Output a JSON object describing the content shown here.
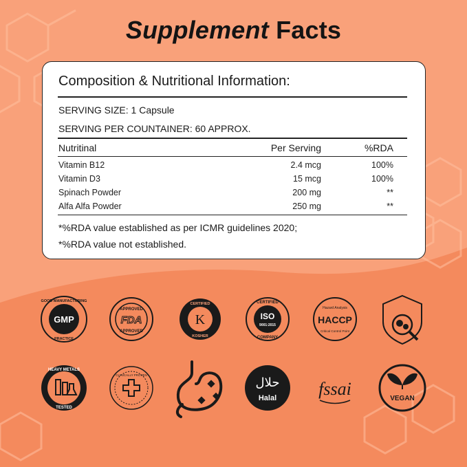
{
  "title": {
    "bold_italic": "Supplement",
    "bold": "Facts"
  },
  "card": {
    "heading": "Composition & Nutritional Information:",
    "serving_size": "SERVING SIZE: 1 Capsule",
    "serving_per_container": "SERVING PER COUNTAINER: 60 APPROX.",
    "columns": [
      "Nutritinal",
      "Per Serving",
      "%RDA"
    ],
    "rows": [
      {
        "name": "Vitamin B12",
        "per_serving": "2.4 mcg",
        "rda": "100%"
      },
      {
        "name": "Vitamin D3",
        "per_serving": "15 mcg",
        "rda": "100%"
      },
      {
        "name": "Spinach Powder",
        "per_serving": "200 mg",
        "rda": "**"
      },
      {
        "name": "Alfa Alfa Powder",
        "per_serving": "250 mg",
        "rda": "**"
      }
    ],
    "footnotes": [
      "*%RDA value established as per ICMR guidelines 2020;",
      "*%RDA value not established."
    ]
  },
  "badges": {
    "gmp": {
      "center": "GMP",
      "top": "GOOD MANUFACTURING",
      "bottom": "PRACTICE"
    },
    "fda": {
      "center": "FDA",
      "top": "APPROVED",
      "bottom": "APPROVED"
    },
    "kosher": {
      "center": "K",
      "top": "CERTIFIED",
      "bottom": "KOSHER"
    },
    "iso": {
      "center": "ISO",
      "sub": "9001:2015",
      "top": "CERTIFIED",
      "bottom": "COMPANY"
    },
    "haccp": {
      "center": "HACCP",
      "top": "Hazard Analysis",
      "bottom": "Critical Control Point"
    },
    "lab": {
      "icon": "microscope-capsule-icon"
    },
    "heavy_metals": {
      "top": "HEAVY METALS",
      "bottom": "TESTED"
    },
    "clinical": {
      "top": "CLINICALLY PROVEN"
    },
    "gut": {
      "icon": "stomach-icon"
    },
    "halal": {
      "arabic": "حلال",
      "label": "Halal"
    },
    "fssai": {
      "label": "fssai"
    },
    "vegan": {
      "label": "VEGAN"
    }
  },
  "colors": {
    "background": "#f9a17a",
    "background_wave": "#f48a5d",
    "ink": "#1a1a1a",
    "card": "#ffffff"
  }
}
